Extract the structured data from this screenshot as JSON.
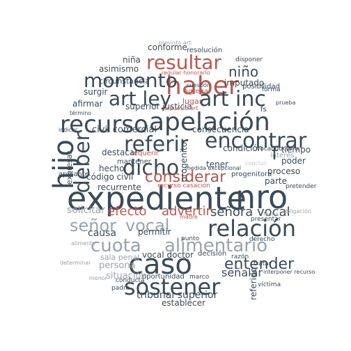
{
  "colors": {
    "dark": "#3b4a57",
    "grey": "#9aa3ab",
    "red": "#b6584f",
    "light": "#c3c8cc"
  },
  "words": {
    "expediente": "expediente",
    "nro": "nro",
    "recurso": "recurso",
    "apelacion": "apelación",
    "caso": "caso",
    "relacion": "relación",
    "cuota": "cuota",
    "alimentario": "alimentario",
    "sostener": "sostener",
    "senor": "señor",
    "vocal": "vocal",
    "haber": "haber",
    "resultar": "resultar",
    "momento": "momento",
    "art_ley": "art ley",
    "art_inc": "art inc",
    "referir": "referir",
    "encontrar": "encontrar",
    "dicho": "dicho",
    "deber": "deber",
    "hijo": "hijo",
    "considerar": "considerar",
    "entender": "entender",
    "senora_vocal": "señora vocal",
    "efecto": "efecto",
    "advertir": "advertir",
    "nino": "niño",
    "conforme": "conforme",
    "civil_comercial": "civil comercial",
    "superior_justicia": "superior justicia",
    "tribunal_superior": "tribunal superior",
    "persona": "persona",
    "situacion": "situación",
    "sala_penal": "sala penal",
    "vocal_doctor": "vocal doctor",
    "senalar": "señalar",
    "codigo_civil": "código civil",
    "recurrente": "recurrente",
    "destacar": "destacar",
    "hecho": "hecho",
    "causa": "causa",
    "solicitar": "solicitar",
    "permitir": "permitir",
    "surgir": "surgir",
    "afirmar": "afirmar",
    "asimismo": "asimismo",
    "nina": "niña",
    "imputado": "imputado",
    "lugar": "lugar",
    "circunstancia": "circunstancia",
    "expresar": "expresar",
    "condicion": "condición",
    "tiempo": "tiempo",
    "poder": "poder",
    "proceso": "proceso",
    "parte": "parte",
    "consecuencia": "consecuencia",
    "tener": "tener",
    "progenitor": "progenitor",
    "establecer": "establecer",
    "oportunidad": "oportunidad",
    "f": "f",
    "agregar": "agregar",
    "posibilidad": "posibilidad",
    "resolucion": "resolución",
    "interes": "interés",
    "referido": "referido",
    "progenitora": "progenitora",
    "apelante": "apelante",
    "mantener": "mantener",
    "requerir": "requerir",
    "decision": "decisión",
    "recurso_casacion": "recurso casación",
    "vocal_doctora": "vocal doctora",
    "pretender": "pretender",
    "victima": "víctima",
    "padre": "padre",
    "conducta": "conducta",
    "marco": "marco",
    "razon": "razón",
    "punto": "punto",
    "derecho": "derecho",
    "presentar": "presentar",
    "tratar": "tratar",
    "disponer": "disponer",
    "previsto_art": "previsto art",
    "regular_honorario": "regular honorario",
    "dispuesto_art": "dispuesto art",
    "forma": "forma",
    "prueba": "prueba",
    "fs": "fs",
    "medida_excepcional": "medida excepcional",
    "concluir": "concluir",
    "termino": "término",
    "madre": "madre",
    "cuestion": "cuestión",
    "determinar": "determinar",
    "interponer_recurso": "interponer recurso",
    "indicar": "indicar",
    "fecha": "fecha",
    "menor": "menor",
    "obligacion": "obligación",
    "alimento": "alimento"
  }
}
